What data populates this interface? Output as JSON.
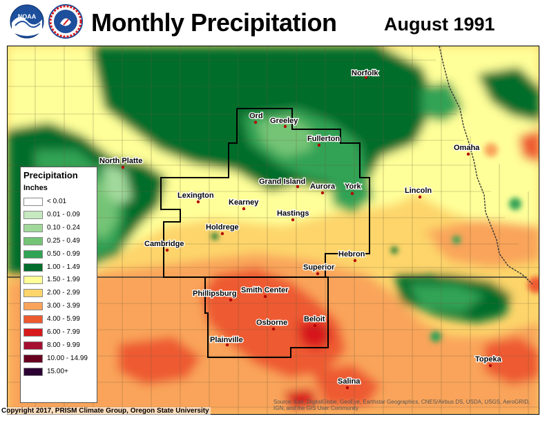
{
  "header": {
    "title": "Monthly Precipitation",
    "date": "August 1991",
    "logos": [
      "noaa-logo",
      "national-weather-service-logo"
    ]
  },
  "legend": {
    "title": "Precipitation",
    "units": "Inches",
    "classes": [
      {
        "label": "< 0.01",
        "color": "#ffffff"
      },
      {
        "label": "0.01 - 0.09",
        "color": "#c7e9c0"
      },
      {
        "label": "0.10 - 0.24",
        "color": "#a1d99b"
      },
      {
        "label": "0.25 - 0.49",
        "color": "#74c476"
      },
      {
        "label": "0.50 - 0.99",
        "color": "#31a354"
      },
      {
        "label": "1.00 - 1.49",
        "color": "#006d2c"
      },
      {
        "label": "1.50 - 1.99",
        "color": "#ffff99"
      },
      {
        "label": "2.00 - 2.99",
        "color": "#fdd56b"
      },
      {
        "label": "3.00 - 3.99",
        "color": "#f9a45a"
      },
      {
        "label": "4.00 - 5.99",
        "color": "#ee5a30"
      },
      {
        "label": "6.00 - 7.99",
        "color": "#d7191c"
      },
      {
        "label": "8.00 - 9.99",
        "color": "#a50f30"
      },
      {
        "label": "10.00 - 14.99",
        "color": "#67001f"
      },
      {
        "label": "15.00+",
        "color": "#2d0033"
      }
    ]
  },
  "cities": [
    {
      "name": "Norfolk"
    },
    {
      "name": "Ord"
    },
    {
      "name": "Greeley"
    },
    {
      "name": "Fullerton"
    },
    {
      "name": "Omaha"
    },
    {
      "name": "North Platte"
    },
    {
      "name": "Grand Island"
    },
    {
      "name": "Aurora"
    },
    {
      "name": "York"
    },
    {
      "name": "Lincoln"
    },
    {
      "name": "Lexington"
    },
    {
      "name": "Kearney"
    },
    {
      "name": "Hastings"
    },
    {
      "name": "Holdrege"
    },
    {
      "name": "Cambridge"
    },
    {
      "name": "Hebron"
    },
    {
      "name": "Superior"
    },
    {
      "name": "Phillipsburg"
    },
    {
      "name": "Smith Center"
    },
    {
      "name": "Osborne"
    },
    {
      "name": "Beloit"
    },
    {
      "name": "Plainville"
    },
    {
      "name": "Topeka"
    },
    {
      "name": "Salina"
    }
  ],
  "footer": {
    "copyright": "Copyright 2017, PRISM Climate Group, Oregon State University",
    "source": "Source: Esri, DigitalGlobe, GeoEye, Earthstar Geographics, CNES/Airbus DS, USDA, USGS, AeroGRID, IGN, and the GIS User Community"
  }
}
